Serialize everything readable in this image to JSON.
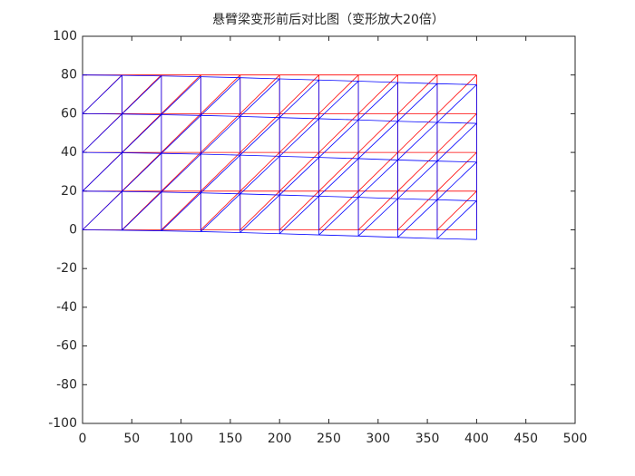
{
  "chart_data": {
    "type": "mesh",
    "title": "悬臂梁变形前后对比图（变形放大20倍）",
    "xlim": [
      0,
      500
    ],
    "ylim": [
      -100,
      100
    ],
    "xticks": [
      0,
      50,
      100,
      150,
      200,
      250,
      300,
      350,
      400,
      450,
      500
    ],
    "yticks": [
      -100,
      -80,
      -60,
      -40,
      -20,
      0,
      20,
      40,
      60,
      80,
      100
    ],
    "node_x": [
      0,
      40,
      80,
      120,
      160,
      200,
      240,
      280,
      320,
      360,
      400
    ],
    "node_y": [
      0,
      20,
      40,
      60,
      80
    ],
    "original": {
      "color": "#ff0000"
    },
    "deformed": {
      "color": "#0000ff",
      "dy": [
        0,
        -0.2,
        -0.5,
        -0.9,
        -1.4,
        -2.0,
        -2.6,
        -3.2,
        -3.9,
        -4.5,
        -5.0
      ]
    }
  }
}
